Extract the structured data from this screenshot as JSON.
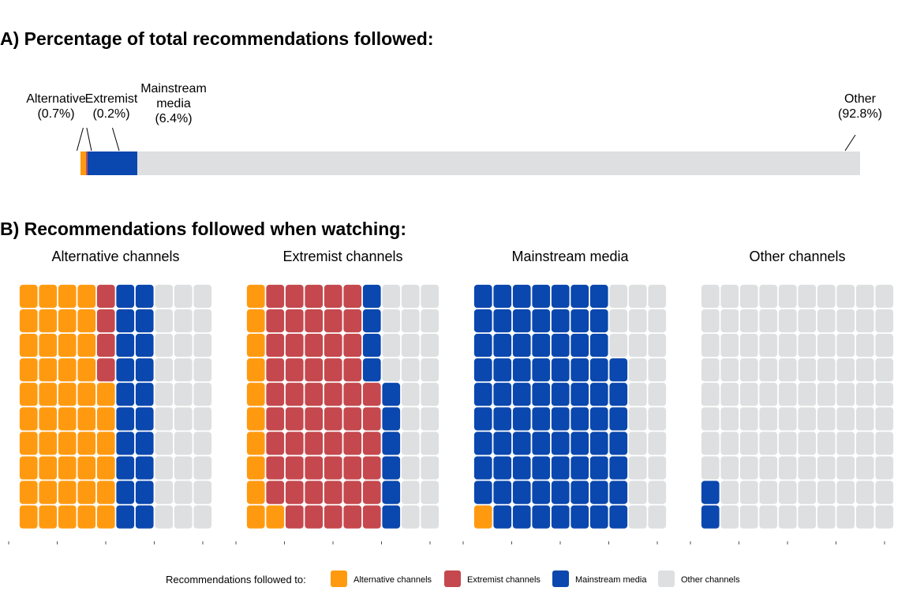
{
  "colors": {
    "alternative": "#FF9A10",
    "extremist": "#C4484D",
    "mainstream": "#0A47AE",
    "other": "#DDDFE0"
  },
  "chart_data": [
    {
      "type": "bar",
      "subtype": "stacked-horizontal-100",
      "title": "A) Percentage of total recommendations followed:",
      "categories": [
        "Alternative",
        "Extremist",
        "Mainstream media",
        "Other"
      ],
      "label_lines": [
        [
          "Alternative",
          "(0.7%)"
        ],
        [
          "Extremist",
          "(0.2%)"
        ],
        [
          "Mainstream",
          "media",
          "(6.4%)"
        ],
        [
          "Other",
          "(92.8%)"
        ]
      ],
      "values": [
        0.7,
        0.2,
        6.4,
        92.8
      ],
      "unit": "%"
    },
    {
      "type": "waffle",
      "title": "B) Recommendations followed when watching:",
      "grid": {
        "rows": 10,
        "columns": 10,
        "fill_order": "column-wise, bottom to top"
      },
      "facets": [
        {
          "label": "Alternative channels",
          "counts": {
            "alternative": 46,
            "extremist": 4,
            "mainstream": 20,
            "other": 30
          }
        },
        {
          "label": "Extremist channels",
          "counts": {
            "alternative": 11,
            "extremist": 55,
            "mainstream": 10,
            "other": 24
          }
        },
        {
          "label": "Mainstream media",
          "counts": {
            "alternative": 1,
            "extremist": 0,
            "mainstream": 76,
            "other": 23
          }
        },
        {
          "label": "Other channels",
          "counts": {
            "alternative": 0,
            "extremist": 0,
            "mainstream": 2,
            "other": 98
          }
        }
      ],
      "legend": {
        "title": "Recommendations followed to:",
        "position": "bottom",
        "items": [
          {
            "key": "alternative",
            "label": "Alternative channels"
          },
          {
            "key": "extremist",
            "label": "Extremist channels"
          },
          {
            "key": "mainstream",
            "label": "Mainstream media"
          },
          {
            "key": "other",
            "label": "Other channels"
          }
        ]
      }
    }
  ]
}
